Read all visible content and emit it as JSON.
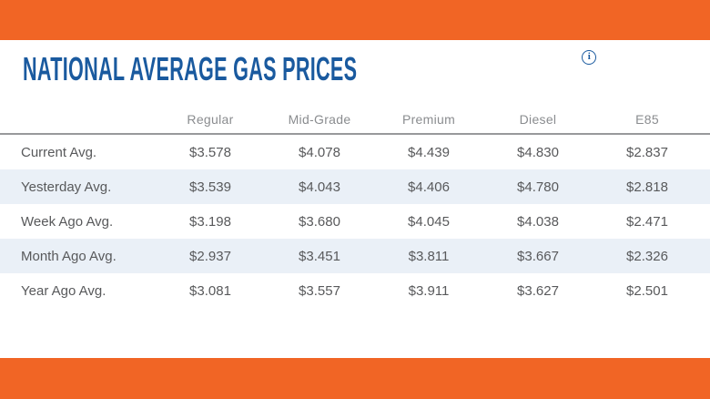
{
  "brand": {
    "orange": "#f16525",
    "title_blue": "#1a5a9f",
    "row_stripe": "#eaf0f7",
    "text_gray": "#58595b",
    "header_gray": "#8a8c8f"
  },
  "title": {
    "text": "NATIONAL AVERAGE GAS PRICES",
    "info_icon_glyph": "i"
  },
  "table": {
    "columns": [
      "Regular",
      "Mid-Grade",
      "Premium",
      "Diesel",
      "E85"
    ],
    "rows": [
      {
        "label": "Current Avg.",
        "values": [
          "$3.578",
          "$4.078",
          "$4.439",
          "$4.830",
          "$2.837"
        ]
      },
      {
        "label": "Yesterday Avg.",
        "values": [
          "$3.539",
          "$4.043",
          "$4.406",
          "$4.780",
          "$2.818"
        ]
      },
      {
        "label": "Week Ago Avg.",
        "values": [
          "$3.198",
          "$3.680",
          "$4.045",
          "$4.038",
          "$2.471"
        ]
      },
      {
        "label": "Month Ago Avg.",
        "values": [
          "$2.937",
          "$3.451",
          "$3.811",
          "$3.667",
          "$2.326"
        ]
      },
      {
        "label": "Year Ago Avg.",
        "values": [
          "$3.081",
          "$3.557",
          "$3.911",
          "$3.627",
          "$2.501"
        ]
      }
    ]
  }
}
